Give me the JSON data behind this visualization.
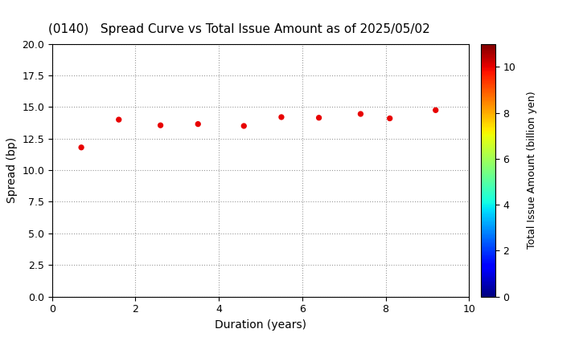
{
  "title": "(0140)   Spread Curve vs Total Issue Amount as of 2025/05/02",
  "xlabel": "Duration (years)",
  "ylabel": "Spread (bp)",
  "colorbar_label": "Total Issue Amount (billion yen)",
  "xlim": [
    0,
    10
  ],
  "ylim": [
    0.0,
    20.0
  ],
  "yticks": [
    0.0,
    2.5,
    5.0,
    7.5,
    10.0,
    12.5,
    15.0,
    17.5,
    20.0
  ],
  "xticks": [
    0,
    2,
    4,
    6,
    8,
    10
  ],
  "colorbar_range": [
    0,
    11
  ],
  "colorbar_ticks": [
    0,
    2,
    4,
    6,
    8,
    10
  ],
  "points": [
    {
      "duration": 0.7,
      "spread": 11.8,
      "amount": 10.0
    },
    {
      "duration": 1.6,
      "spread": 14.0,
      "amount": 10.0
    },
    {
      "duration": 2.6,
      "spread": 13.55,
      "amount": 10.0
    },
    {
      "duration": 3.5,
      "spread": 13.65,
      "amount": 10.0
    },
    {
      "duration": 4.6,
      "spread": 13.5,
      "amount": 10.0
    },
    {
      "duration": 5.5,
      "spread": 14.2,
      "amount": 10.0
    },
    {
      "duration": 6.4,
      "spread": 14.15,
      "amount": 10.0
    },
    {
      "duration": 7.4,
      "spread": 14.45,
      "amount": 10.0
    },
    {
      "duration": 8.1,
      "spread": 14.1,
      "amount": 10.0
    },
    {
      "duration": 9.2,
      "spread": 14.75,
      "amount": 10.0
    }
  ],
  "background_color": "#ffffff",
  "marker_size": 18,
  "colormap": "jet",
  "title_fontsize": 11,
  "axis_fontsize": 10,
  "tick_fontsize": 9
}
